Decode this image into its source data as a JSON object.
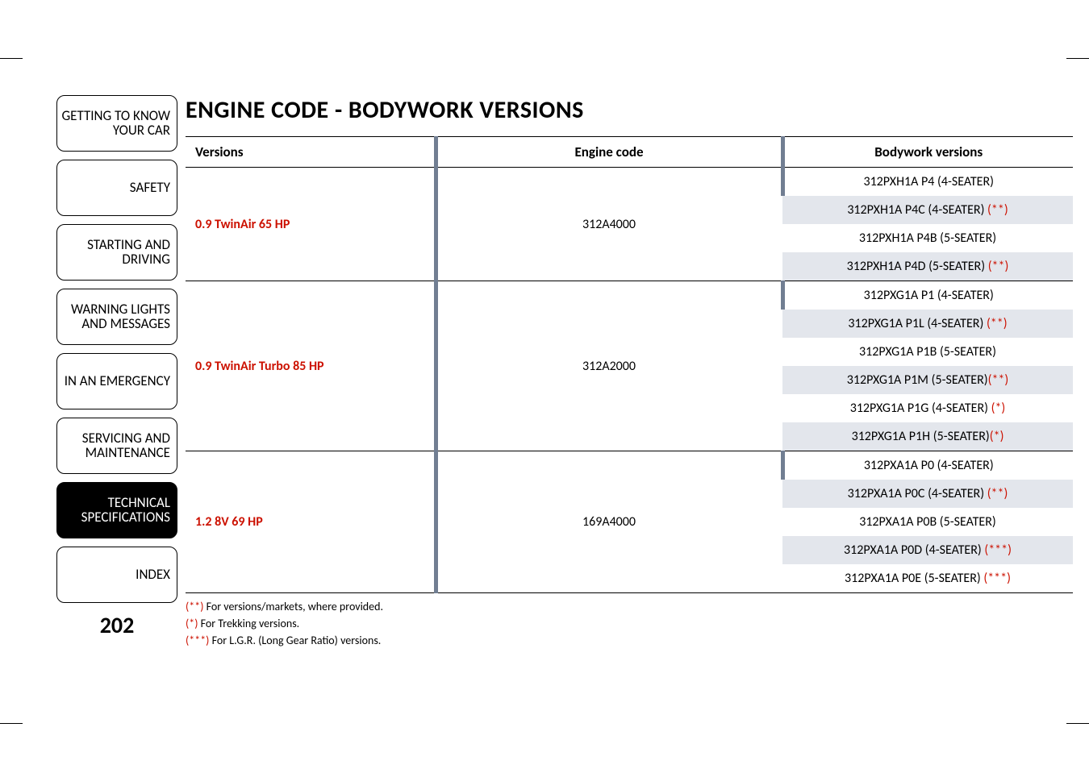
{
  "page": {
    "title": "ENGINE CODE - BODYWORK VERSIONS",
    "page_number": "202"
  },
  "colors": {
    "accent_red": "#cc1100",
    "col_separator": "#717e92",
    "alt_row_bg": "#e3e6ec",
    "text": "#000000",
    "bg": "#ffffff"
  },
  "sidebar": {
    "tabs": [
      {
        "label": "GETTING TO KNOW YOUR CAR",
        "active": false
      },
      {
        "label": "SAFETY",
        "active": false
      },
      {
        "label": "STARTING AND DRIVING",
        "active": false
      },
      {
        "label": "WARNING LIGHTS AND MESSAGES",
        "active": false
      },
      {
        "label": "IN AN EMERGENCY",
        "active": false
      },
      {
        "label": "SERVICING AND MAINTENANCE",
        "active": false
      },
      {
        "label": "TECHNICAL SPECIFICATIONS",
        "active": true
      },
      {
        "label": "INDEX",
        "active": false
      }
    ]
  },
  "table": {
    "headers": {
      "versions": "Versions",
      "engine_code": "Engine code",
      "bodywork": "Bodywork versions"
    },
    "groups": [
      {
        "version": "0.9 TwinAir 65 HP",
        "engine_code": "312A4000",
        "bodywork": [
          {
            "text": "312PXH1A P4 (4-SEATER)",
            "note": ""
          },
          {
            "text": "312PXH1A P4C (4-SEATER) ",
            "note": "(**)"
          },
          {
            "text": "312PXH1A P4B (5-SEATER)",
            "note": ""
          },
          {
            "text": "312PXH1A P4D (5-SEATER) ",
            "note": "(**)"
          }
        ]
      },
      {
        "version": "0.9 TwinAir Turbo 85 HP",
        "engine_code": "312A2000",
        "bodywork": [
          {
            "text": "312PXG1A P1 (4-SEATER)",
            "note": ""
          },
          {
            "text": "312PXG1A P1L (4-SEATER) ",
            "note": "(**)"
          },
          {
            "text": "312PXG1A P1B (5-SEATER)",
            "note": ""
          },
          {
            "text": "312PXG1A P1M (5-SEATER)",
            "note": "(**)"
          },
          {
            "text": "312PXG1A P1G (4-SEATER) ",
            "note": "(*)"
          },
          {
            "text": "312PXG1A P1H (5-SEATER)",
            "note": "(*)"
          }
        ]
      },
      {
        "version": "1.2 8V 69 HP",
        "engine_code": "169A4000",
        "bodywork": [
          {
            "text": "312PXA1A P0 (4-SEATER)",
            "note": ""
          },
          {
            "text": "312PXA1A P0C (4-SEATER) ",
            "note": "(**)"
          },
          {
            "text": "312PXA1A P0B (5-SEATER)",
            "note": ""
          },
          {
            "text": "312PXA1A P0D (4-SEATER) ",
            "note": "(***)"
          },
          {
            "text": "312PXA1A P0E (5-SEATER) ",
            "note": "(***)"
          }
        ]
      }
    ]
  },
  "footnotes": {
    "n1": {
      "mark": "(**)",
      "text": " For versions/markets, where provided."
    },
    "n2": {
      "mark": "(*)",
      "text": " For Trekking versions."
    },
    "n3": {
      "mark": "(***)",
      "text": " For L.G.R. (Long Gear Ratio) versions."
    }
  }
}
